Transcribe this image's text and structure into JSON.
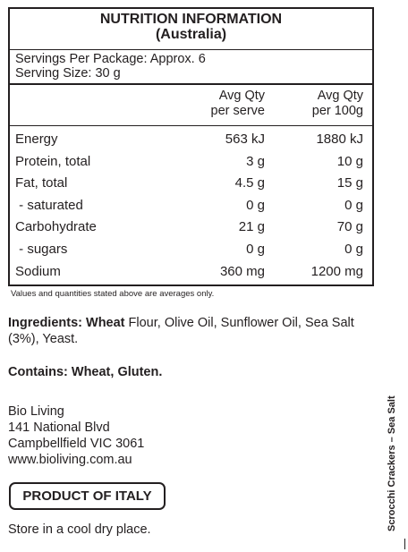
{
  "panel": {
    "title": "NUTRITION INFORMATION",
    "subtitle": "(Australia)",
    "servings_per_package": "Servings Per Package: Approx. 6",
    "serving_size": "Serving Size: 30 g",
    "col1_line1": "Avg Qty",
    "col1_line2": "per serve",
    "col2_line1": "Avg Qty",
    "col2_line2": "per 100g",
    "rows": [
      {
        "name": "Energy",
        "per_serve": "563 kJ",
        "per_100g": "1880 kJ"
      },
      {
        "name": "Protein, total",
        "per_serve": "3 g",
        "per_100g": "10 g"
      },
      {
        "name": "Fat, total",
        "per_serve": "4.5 g",
        "per_100g": "15 g"
      },
      {
        "name": " - saturated",
        "per_serve": "0 g",
        "per_100g": "0 g"
      },
      {
        "name": "Carbohydrate",
        "per_serve": "21 g",
        "per_100g": "70 g"
      },
      {
        "name": " - sugars",
        "per_serve": "0 g",
        "per_100g": "0 g"
      },
      {
        "name": "Sodium",
        "per_serve": "360 mg",
        "per_100g": "1200 mg"
      }
    ]
  },
  "footnote": "Values and quantities stated above are averages only.",
  "ingredients": {
    "label": "Ingredients: Wheat",
    "text": " Flour, Olive Oil, Sunflower Oil, Sea Salt (3%), Yeast."
  },
  "contains": "Contains: Wheat, Gluten.",
  "address": {
    "company": "Bio Living",
    "street": "141 National Blvd",
    "city": "Campbellfield VIC 3061",
    "website": "www.bioliving.com.au"
  },
  "origin": "PRODUCT OF ITALY",
  "storage": "Store in a cool dry place.",
  "product_name": "Scrocchi Crackers – Sea Salt"
}
